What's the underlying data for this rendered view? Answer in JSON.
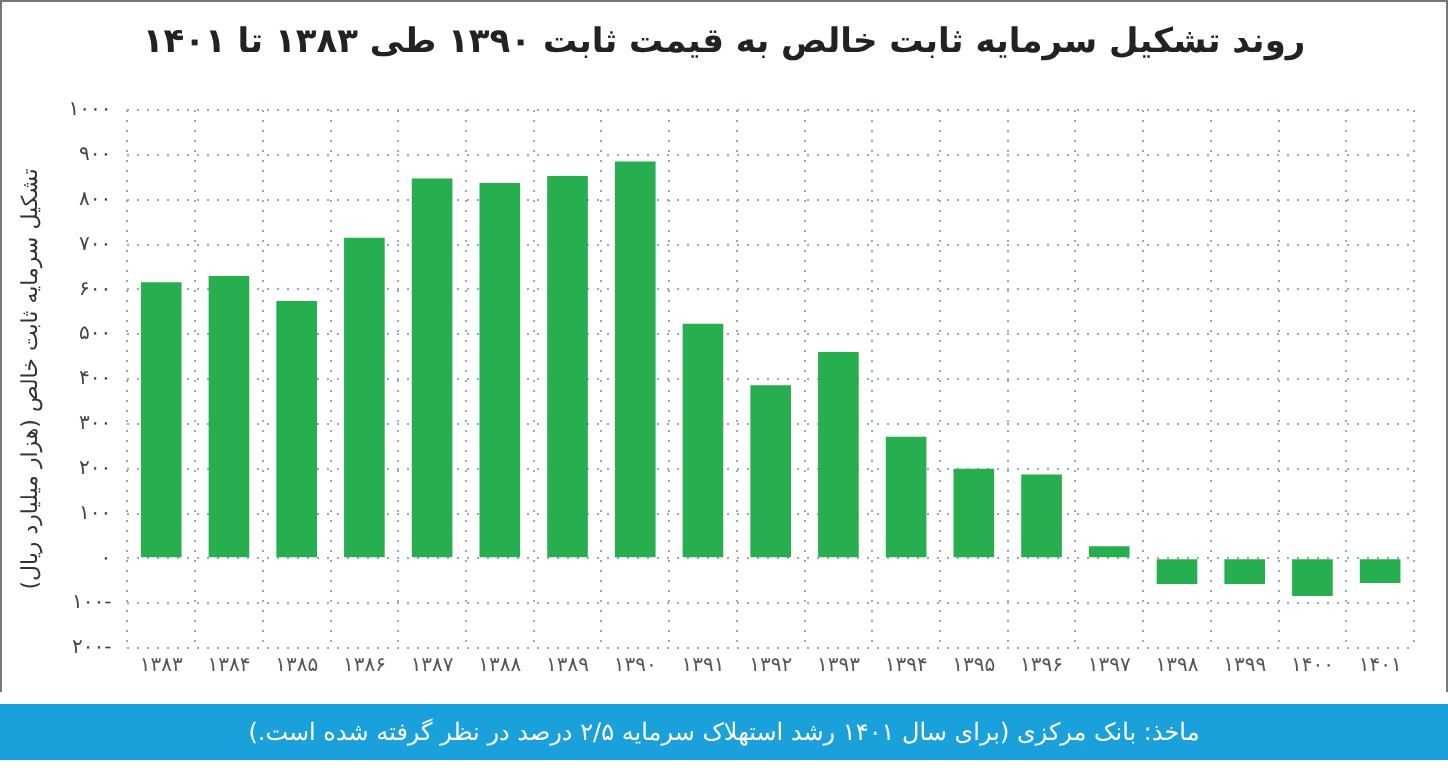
{
  "chart_data": {
    "type": "bar",
    "title": "روند تشکیل سرمایه ثابت خالص به قیمت ثابت ۱۳۹۰ طی ۱۳۸۳ تا ۱۴۰۱",
    "ylabel": "تشکیل سرمایه ثابت خالص (هزار میلیارد ریال)",
    "categories": [
      "۱۳۸۳",
      "۱۳۸۴",
      "۱۳۸۵",
      "۱۳۸۶",
      "۱۳۸۷",
      "۱۳۸۸",
      "۱۳۸۹",
      "۱۳۹۰",
      "۱۳۹۱",
      "۱۳۹۲",
      "۱۳۹۳",
      "۱۳۹۴",
      "۱۳۹۵",
      "۱۳۹۶",
      "۱۳۹۷",
      "۱۳۹۸",
      "۱۳۹۹",
      "۱۴۰۰",
      "۱۴۰۱"
    ],
    "values": [
      616,
      630,
      574,
      715,
      847,
      837,
      853,
      885,
      523,
      386,
      460,
      271,
      200,
      187,
      27,
      -57,
      -57,
      -84,
      -55
    ],
    "color": "#27ae4f",
    "ylim": [
      -200,
      1000
    ],
    "yticks": [
      {
        "value": 1000,
        "label": "۱۰۰۰"
      },
      {
        "value": 900,
        "label": "۹۰۰"
      },
      {
        "value": 800,
        "label": "۸۰۰"
      },
      {
        "value": 700,
        "label": "۷۰۰"
      },
      {
        "value": 600,
        "label": "۶۰۰"
      },
      {
        "value": 500,
        "label": "۵۰۰"
      },
      {
        "value": 400,
        "label": "۴۰۰"
      },
      {
        "value": 300,
        "label": "۳۰۰"
      },
      {
        "value": 200,
        "label": "۲۰۰"
      },
      {
        "value": 100,
        "label": "۱۰۰"
      },
      {
        "value": 0,
        "label": "۰"
      },
      {
        "value": -100,
        "label": "۱۰۰-"
      },
      {
        "value": -200,
        "label": "۲۰۰-"
      }
    ],
    "grid": true,
    "line_style": "dotted",
    "annotations": [
      "ماخذ: بانک مرکزی (برای سال ۱۴۰۱ رشد استهلاک سرمایه ۲/۵ درصد در نظر گرفته شده است.)"
    ]
  }
}
